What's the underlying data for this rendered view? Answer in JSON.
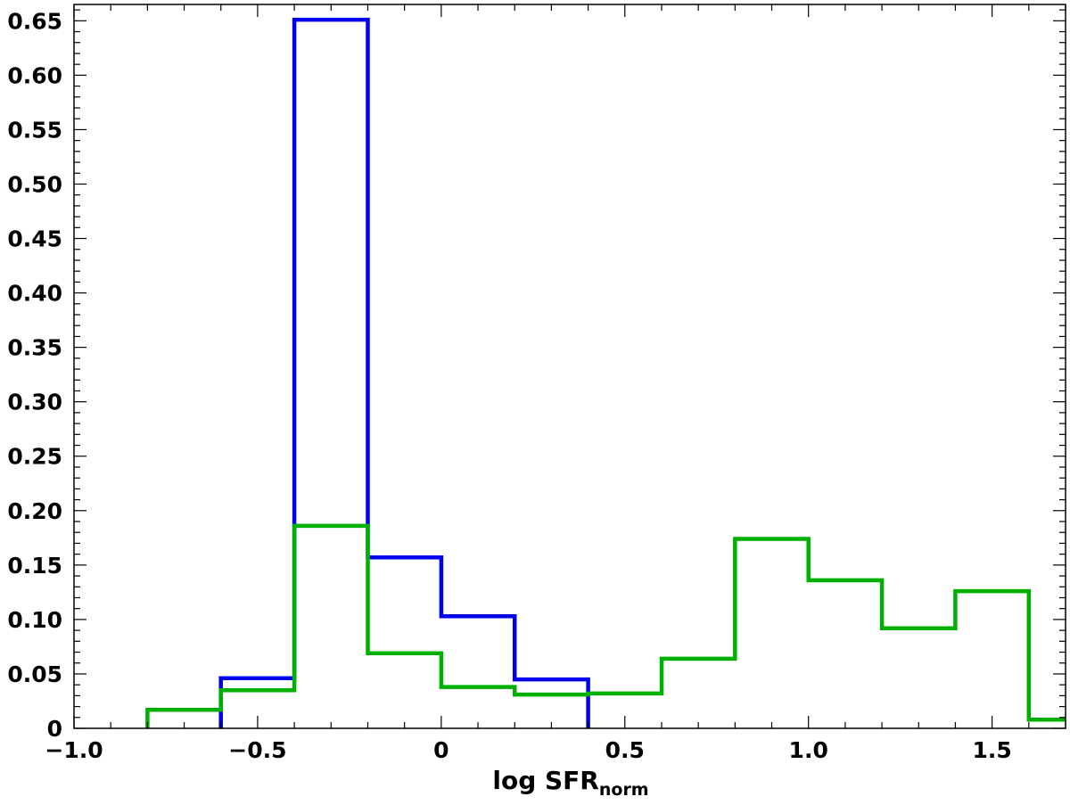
{
  "chart_data": {
    "type": "histogram",
    "title": "",
    "xlabel": {
      "main": "log SFR",
      "subscript": "norm"
    },
    "ylabel": "",
    "xlim": [
      -1.0,
      1.7
    ],
    "ylim": [
      0,
      0.665
    ],
    "grid": false,
    "legend": "none",
    "x_ticks": [
      {
        "value": -1.0,
        "label": "−1.0"
      },
      {
        "value": -0.5,
        "label": "−0.5"
      },
      {
        "value": 0,
        "label": "0"
      },
      {
        "value": 0.5,
        "label": "0.5"
      },
      {
        "value": 1.0,
        "label": "1.0"
      },
      {
        "value": 1.5,
        "label": "1.5"
      }
    ],
    "y_ticks": [
      {
        "value": 0,
        "label": "0"
      },
      {
        "value": 0.05,
        "label": "0.05"
      },
      {
        "value": 0.1,
        "label": "0.10"
      },
      {
        "value": 0.15,
        "label": "0.15"
      },
      {
        "value": 0.2,
        "label": "0.20"
      },
      {
        "value": 0.25,
        "label": "0.25"
      },
      {
        "value": 0.3,
        "label": "0.30"
      },
      {
        "value": 0.35,
        "label": "0.35"
      },
      {
        "value": 0.4,
        "label": "0.40"
      },
      {
        "value": 0.45,
        "label": "0.45"
      },
      {
        "value": 0.5,
        "label": "0.50"
      },
      {
        "value": 0.55,
        "label": "0.55"
      },
      {
        "value": 0.6,
        "label": "0.60"
      },
      {
        "value": 0.65,
        "label": "0.65"
      }
    ],
    "series": [
      {
        "name": "blue",
        "color": "#0000ee",
        "bin_edges": [
          -0.6,
          -0.4,
          -0.2,
          0.0,
          0.2,
          0.4
        ],
        "values": [
          0.046,
          0.651,
          0.157,
          0.103,
          0.045
        ]
      },
      {
        "name": "green",
        "color": "#00b000",
        "bin_edges": [
          -0.8,
          -0.6,
          -0.4,
          -0.2,
          0.0,
          0.2,
          0.4,
          0.6,
          0.8,
          1.0,
          1.2,
          1.4,
          1.6,
          1.8
        ],
        "values": [
          0.017,
          0.035,
          0.186,
          0.069,
          0.038,
          0.031,
          0.032,
          0.064,
          0.174,
          0.136,
          0.092,
          0.126,
          0.008
        ]
      }
    ]
  }
}
